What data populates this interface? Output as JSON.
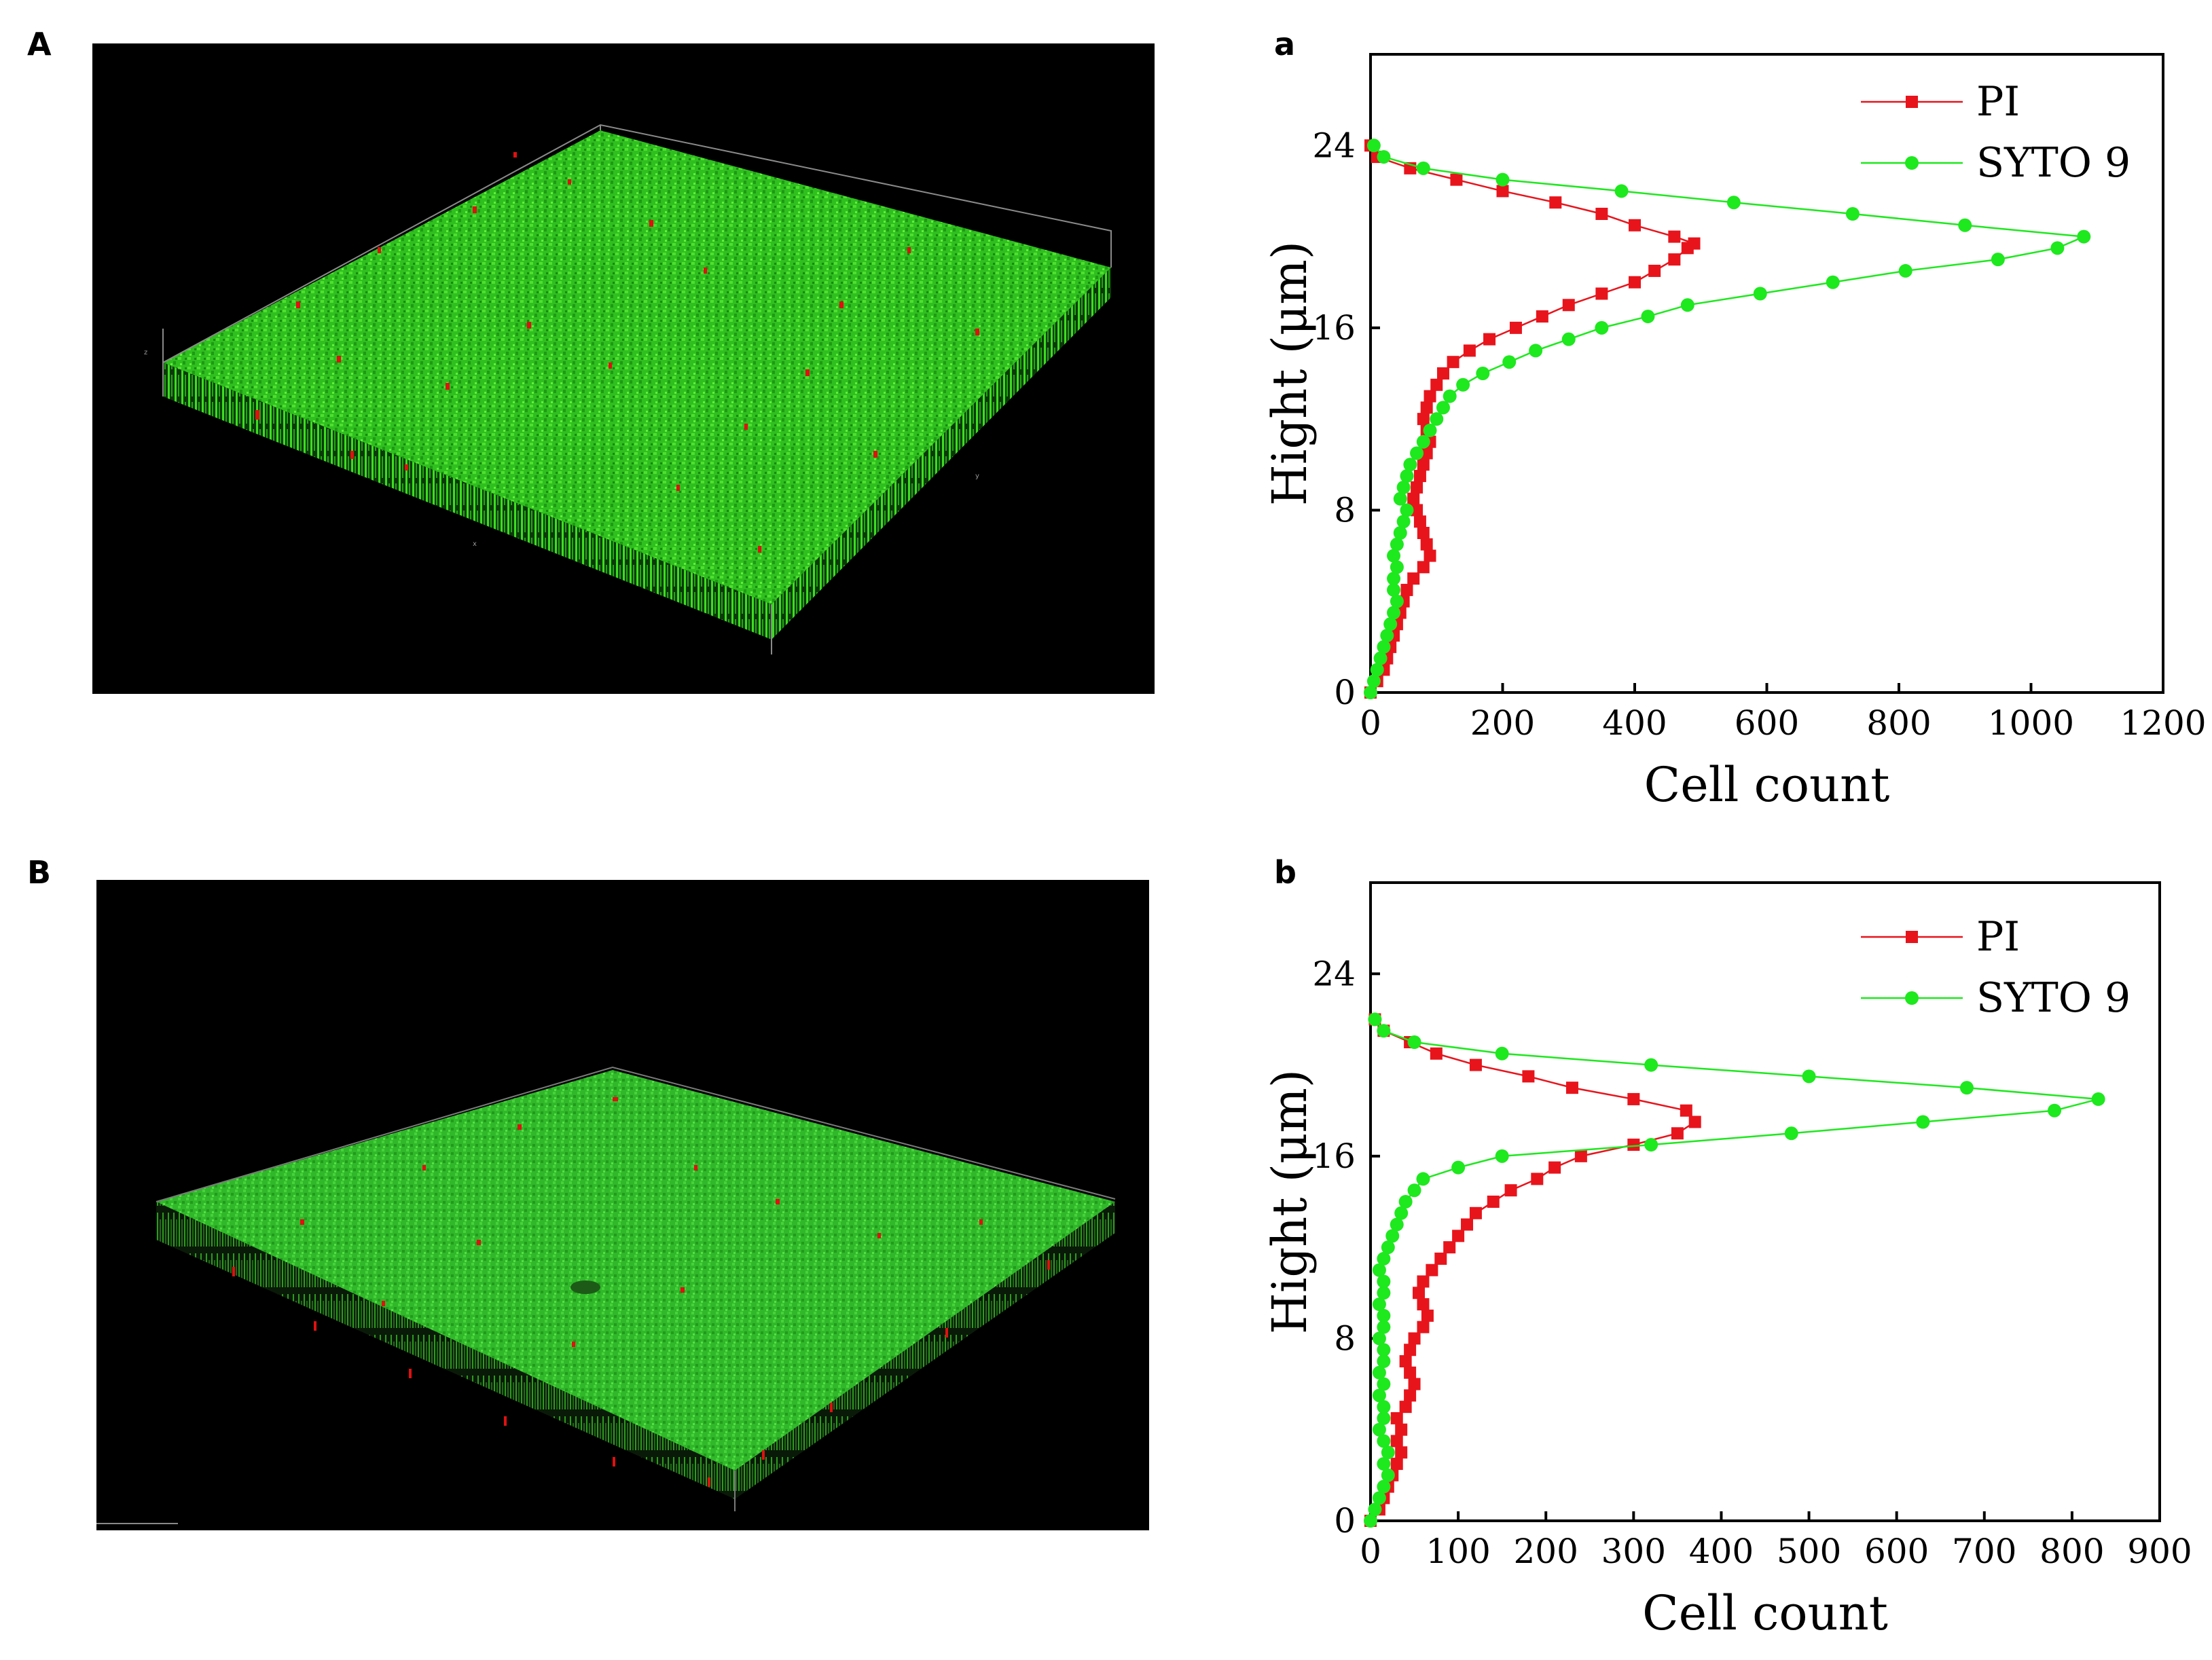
{
  "panels": {
    "A": "A",
    "B": "B",
    "a": "a",
    "b": "b"
  },
  "colors": {
    "pi": "#e8141c",
    "syto9": "#1ee81e",
    "background_micro": "#000000"
  },
  "chart_data": [
    {
      "id": "a",
      "type": "line",
      "title": "",
      "xlabel": "Cell count",
      "ylabel": "Hight (μm)",
      "xlim": [
        0,
        1200
      ],
      "ylim": [
        0,
        28
      ],
      "xticks": [
        0,
        200,
        400,
        600,
        800,
        1000,
        1200
      ],
      "yticks": [
        0,
        8,
        16,
        24
      ],
      "legend_position": "top-right",
      "series": [
        {
          "name": "PI",
          "color": "#e8141c",
          "marker": "square",
          "points": [
            [
              0,
              0
            ],
            [
              10,
              0.5
            ],
            [
              20,
              1
            ],
            [
              25,
              1.5
            ],
            [
              30,
              2
            ],
            [
              35,
              2.5
            ],
            [
              40,
              3
            ],
            [
              45,
              3.5
            ],
            [
              50,
              4
            ],
            [
              55,
              4.5
            ],
            [
              65,
              5
            ],
            [
              80,
              5.5
            ],
            [
              90,
              6
            ],
            [
              85,
              6.5
            ],
            [
              80,
              7
            ],
            [
              75,
              7.5
            ],
            [
              70,
              8
            ],
            [
              65,
              8.5
            ],
            [
              70,
              9
            ],
            [
              75,
              9.5
            ],
            [
              80,
              10
            ],
            [
              85,
              10.5
            ],
            [
              90,
              11
            ],
            [
              85,
              11.5
            ],
            [
              80,
              12
            ],
            [
              85,
              12.5
            ],
            [
              90,
              13
            ],
            [
              100,
              13.5
            ],
            [
              110,
              14
            ],
            [
              125,
              14.5
            ],
            [
              150,
              15
            ],
            [
              180,
              15.5
            ],
            [
              220,
              16
            ],
            [
              260,
              16.5
            ],
            [
              300,
              17
            ],
            [
              350,
              17.5
            ],
            [
              400,
              18
            ],
            [
              430,
              18.5
            ],
            [
              460,
              19
            ],
            [
              480,
              19.5
            ],
            [
              490,
              19.7
            ],
            [
              460,
              20
            ],
            [
              400,
              20.5
            ],
            [
              350,
              21
            ],
            [
              280,
              21.5
            ],
            [
              200,
              22
            ],
            [
              130,
              22.5
            ],
            [
              60,
              23
            ],
            [
              10,
              23.5
            ],
            [
              0,
              24
            ]
          ]
        },
        {
          "name": "SYTO 9",
          "color": "#1ee81e",
          "marker": "circle",
          "points": [
            [
              0,
              0
            ],
            [
              5,
              0.5
            ],
            [
              10,
              1
            ],
            [
              15,
              1.5
            ],
            [
              20,
              2
            ],
            [
              25,
              2.5
            ],
            [
              30,
              3
            ],
            [
              35,
              3.5
            ],
            [
              40,
              4
            ],
            [
              35,
              4.5
            ],
            [
              35,
              5
            ],
            [
              40,
              5.5
            ],
            [
              35,
              6
            ],
            [
              40,
              6.5
            ],
            [
              45,
              7
            ],
            [
              50,
              7.5
            ],
            [
              55,
              8
            ],
            [
              45,
              8.5
            ],
            [
              50,
              9
            ],
            [
              55,
              9.5
            ],
            [
              60,
              10
            ],
            [
              70,
              10.5
            ],
            [
              80,
              11
            ],
            [
              90,
              11.5
            ],
            [
              100,
              12
            ],
            [
              110,
              12.5
            ],
            [
              120,
              13
            ],
            [
              140,
              13.5
            ],
            [
              170,
              14
            ],
            [
              210,
              14.5
            ],
            [
              250,
              15
            ],
            [
              300,
              15.5
            ],
            [
              350,
              16
            ],
            [
              420,
              16.5
            ],
            [
              480,
              17
            ],
            [
              590,
              17.5
            ],
            [
              700,
              18
            ],
            [
              810,
              18.5
            ],
            [
              950,
              19
            ],
            [
              1040,
              19.5
            ],
            [
              1080,
              20
            ],
            [
              900,
              20.5
            ],
            [
              730,
              21
            ],
            [
              550,
              21.5
            ],
            [
              380,
              22
            ],
            [
              200,
              22.5
            ],
            [
              80,
              23
            ],
            [
              20,
              23.5
            ],
            [
              5,
              24
            ]
          ]
        }
      ]
    },
    {
      "id": "b",
      "type": "line",
      "title": "",
      "xlabel": "Cell count",
      "ylabel": "Hight (μm)",
      "xlim": [
        0,
        900
      ],
      "ylim": [
        0,
        28
      ],
      "xticks": [
        0,
        100,
        200,
        300,
        400,
        500,
        600,
        700,
        800,
        900
      ],
      "yticks": [
        0,
        8,
        16,
        24
      ],
      "legend_position": "top-right",
      "series": [
        {
          "name": "PI",
          "color": "#e8141c",
          "marker": "square",
          "points": [
            [
              0,
              0
            ],
            [
              10,
              0.5
            ],
            [
              15,
              1
            ],
            [
              20,
              1.5
            ],
            [
              25,
              2
            ],
            [
              30,
              2.5
            ],
            [
              35,
              3
            ],
            [
              30,
              3.5
            ],
            [
              35,
              4
            ],
            [
              30,
              4.5
            ],
            [
              40,
              5
            ],
            [
              45,
              5.5
            ],
            [
              50,
              6
            ],
            [
              45,
              6.5
            ],
            [
              40,
              7
            ],
            [
              45,
              7.5
            ],
            [
              50,
              8
            ],
            [
              60,
              8.5
            ],
            [
              65,
              9
            ],
            [
              60,
              9.5
            ],
            [
              55,
              10
            ],
            [
              60,
              10.5
            ],
            [
              70,
              11
            ],
            [
              80,
              11.5
            ],
            [
              90,
              12
            ],
            [
              100,
              12.5
            ],
            [
              110,
              13
            ],
            [
              120,
              13.5
            ],
            [
              140,
              14
            ],
            [
              160,
              14.5
            ],
            [
              190,
              15
            ],
            [
              210,
              15.5
            ],
            [
              240,
              16
            ],
            [
              300,
              16.5
            ],
            [
              350,
              17
            ],
            [
              370,
              17.5
            ],
            [
              360,
              18
            ],
            [
              300,
              18.5
            ],
            [
              230,
              19
            ],
            [
              180,
              19.5
            ],
            [
              120,
              20
            ],
            [
              75,
              20.5
            ],
            [
              45,
              21
            ],
            [
              15,
              21.5
            ],
            [
              5,
              22
            ]
          ]
        },
        {
          "name": "SYTO 9",
          "color": "#1ee81e",
          "marker": "circle",
          "points": [
            [
              0,
              0
            ],
            [
              5,
              0.5
            ],
            [
              10,
              1
            ],
            [
              15,
              1.5
            ],
            [
              20,
              2
            ],
            [
              15,
              2.5
            ],
            [
              20,
              3
            ],
            [
              15,
              3.5
            ],
            [
              10,
              4
            ],
            [
              15,
              4.5
            ],
            [
              15,
              5
            ],
            [
              10,
              5.5
            ],
            [
              15,
              6
            ],
            [
              10,
              6.5
            ],
            [
              15,
              7
            ],
            [
              15,
              7.5
            ],
            [
              10,
              8
            ],
            [
              15,
              8.5
            ],
            [
              15,
              9
            ],
            [
              10,
              9.5
            ],
            [
              15,
              10
            ],
            [
              15,
              10.5
            ],
            [
              10,
              11
            ],
            [
              15,
              11.5
            ],
            [
              20,
              12
            ],
            [
              25,
              12.5
            ],
            [
              30,
              13
            ],
            [
              35,
              13.5
            ],
            [
              40,
              14
            ],
            [
              50,
              14.5
            ],
            [
              60,
              15
            ],
            [
              100,
              15.5
            ],
            [
              150,
              16
            ],
            [
              320,
              16.5
            ],
            [
              480,
              17
            ],
            [
              630,
              17.5
            ],
            [
              780,
              18
            ],
            [
              830,
              18.5
            ],
            [
              680,
              19
            ],
            [
              500,
              19.5
            ],
            [
              320,
              20
            ],
            [
              150,
              20.5
            ],
            [
              50,
              21
            ],
            [
              15,
              21.5
            ],
            [
              5,
              22
            ]
          ]
        }
      ]
    }
  ]
}
